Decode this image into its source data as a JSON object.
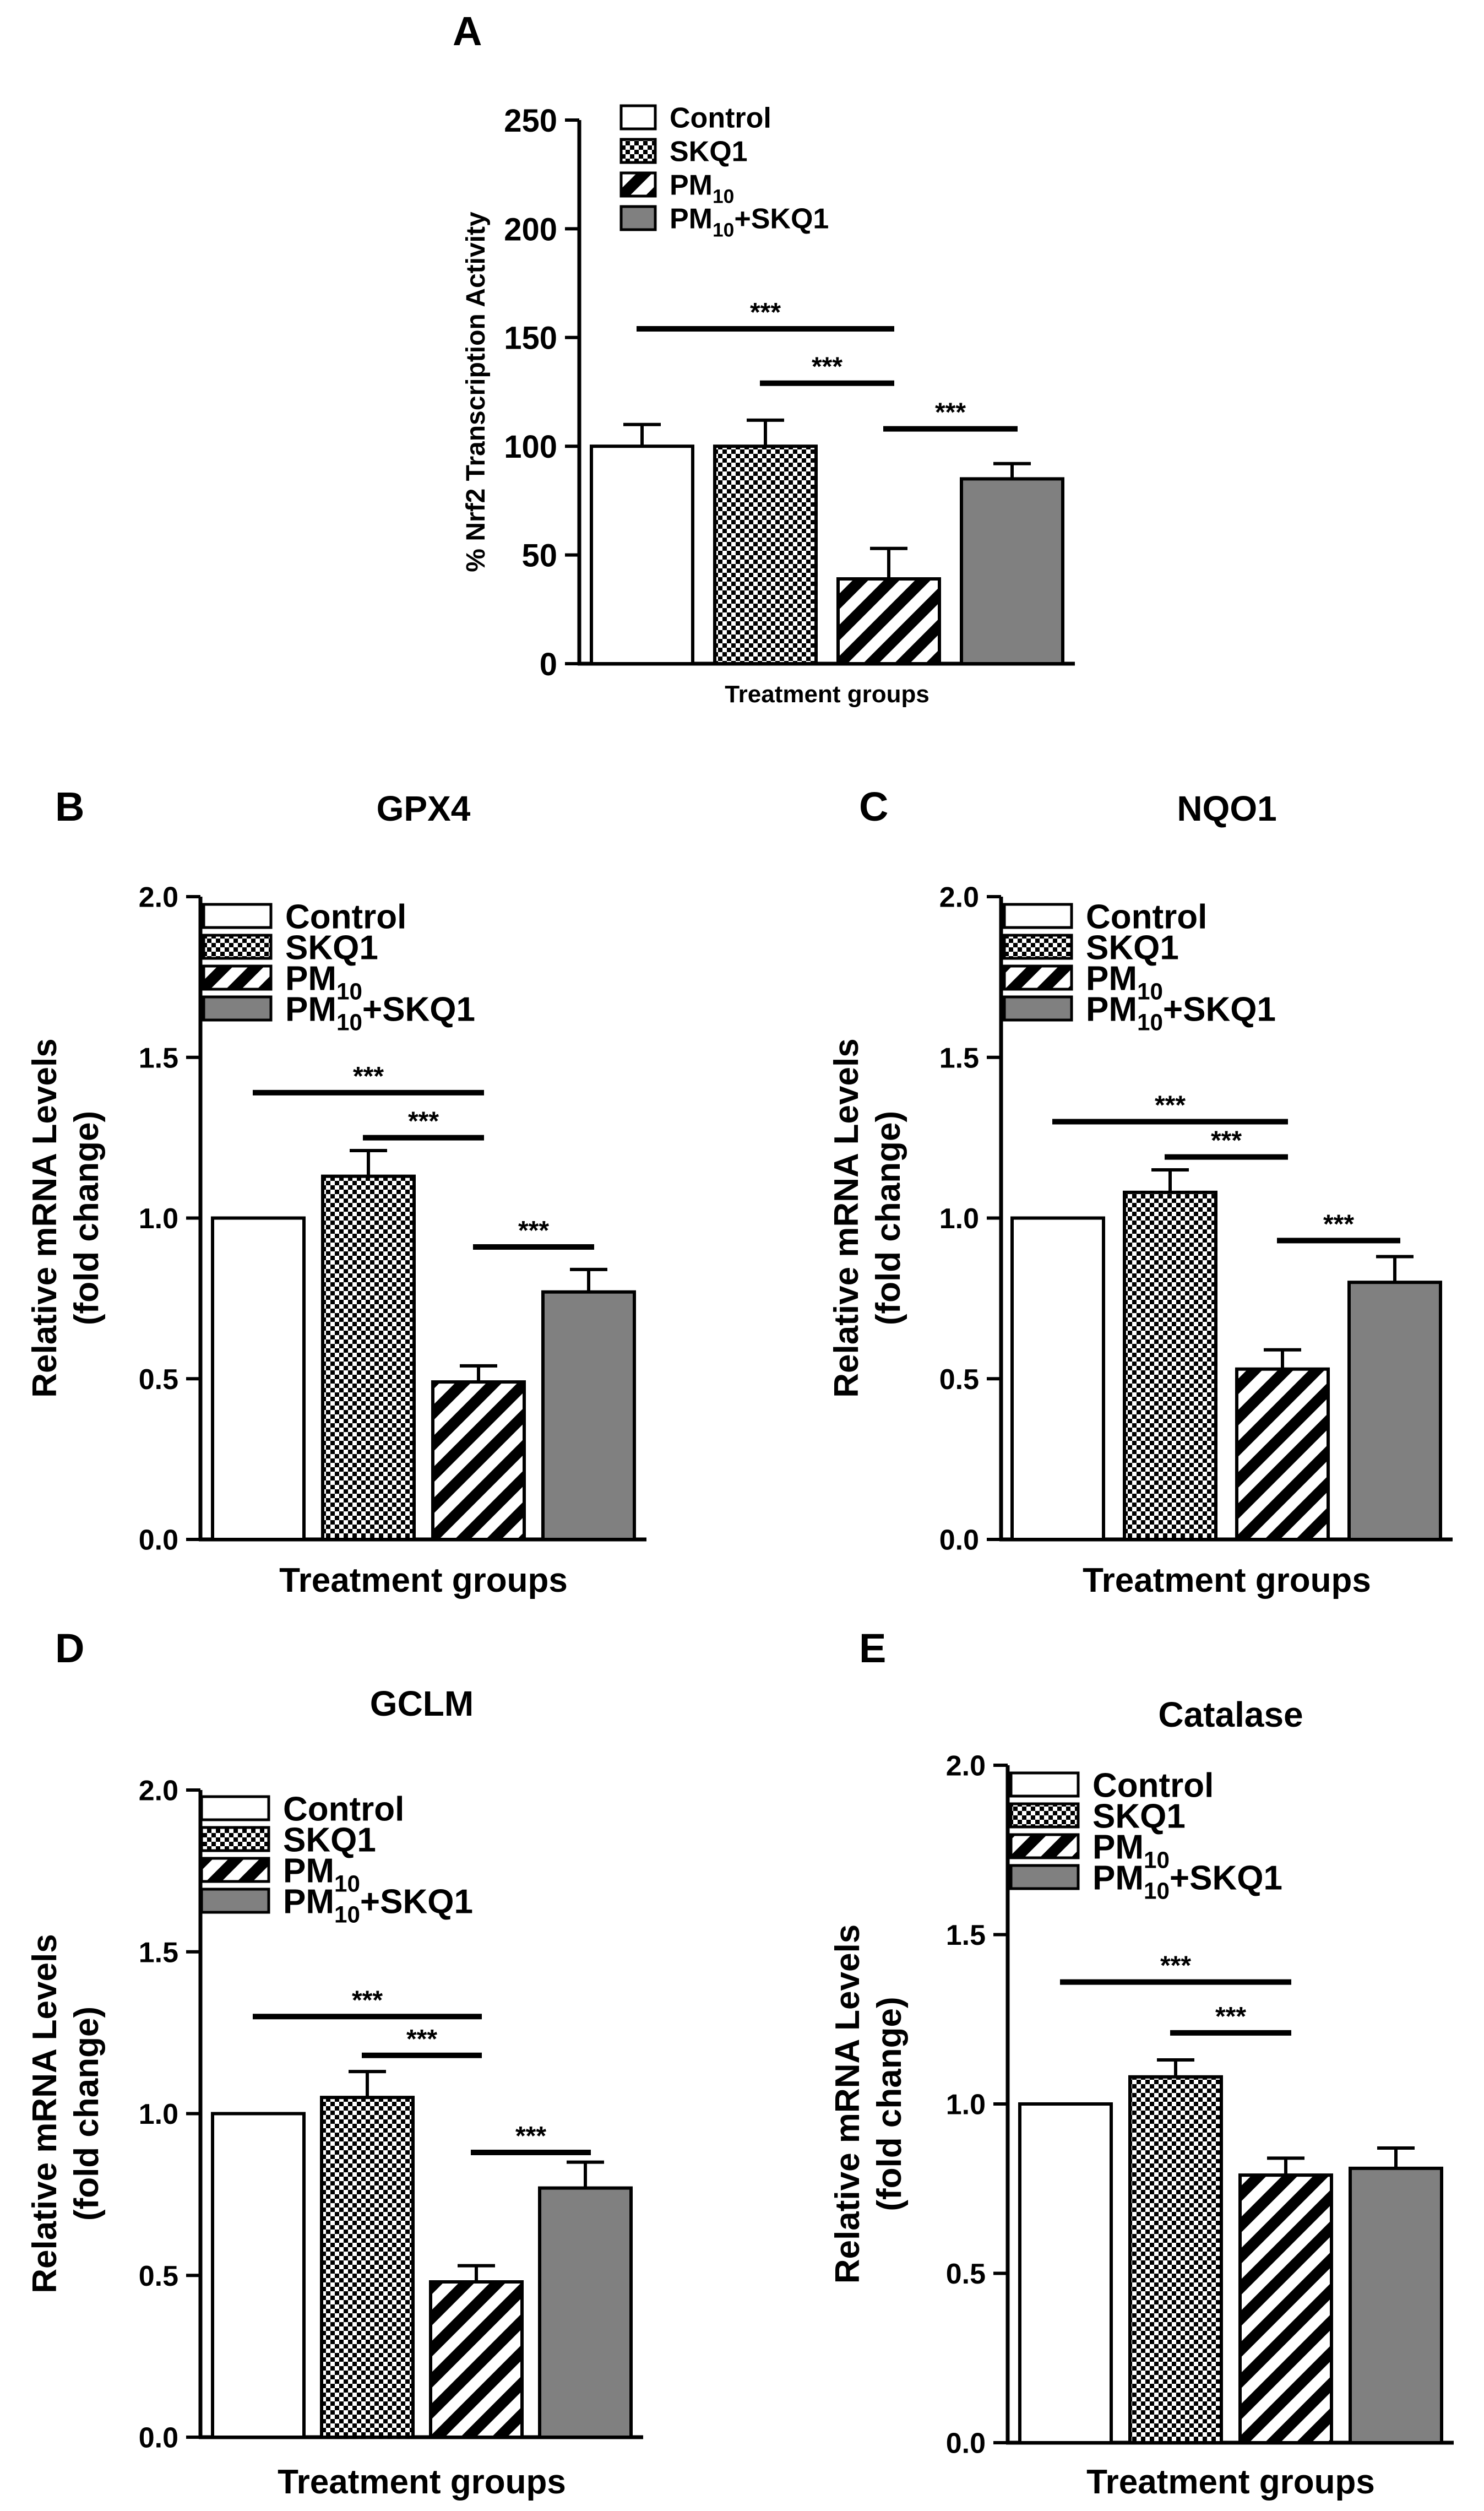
{
  "figure": {
    "groups": [
      "Control",
      "SKQ1",
      "PM10",
      "PM10+SKQ1"
    ],
    "legend": [
      {
        "name": "Control",
        "base": "Control",
        "sub": "",
        "tail": "",
        "pattern": "white"
      },
      {
        "name": "SKQ1",
        "base": "SKQ1",
        "sub": "",
        "tail": "",
        "pattern": "checker"
      },
      {
        "name": "PM10",
        "base": "PM",
        "sub": "10",
        "tail": "",
        "pattern": "hatch"
      },
      {
        "name": "PM10+SKQ1",
        "base": "PM",
        "sub": "10",
        "tail": "+SKQ1",
        "pattern": "gray"
      }
    ],
    "colors": {
      "bar_outline": "#000000",
      "gray_fill": "#808080",
      "background": "#ffffff"
    }
  },
  "chart_data": [
    {
      "panel": "A",
      "type": "bar",
      "title": "",
      "xlabel": "Treatment groups",
      "ylabel": "% Nrf2 Transcription Activity",
      "ylabel_line2": "",
      "categories": [
        "Control",
        "SKQ1",
        "PM10",
        "PM10+SKQ1"
      ],
      "values": [
        100,
        100,
        39,
        85
      ],
      "errors": [
        10,
        12,
        14,
        7
      ],
      "ylim": [
        0,
        250
      ],
      "yticks": [
        0,
        50,
        100,
        150,
        200,
        250
      ],
      "ytick_labels": [
        "0",
        "50",
        "100",
        "150",
        "200",
        "250"
      ],
      "significance": [
        {
          "from": 0,
          "to": 2,
          "label": "***",
          "y": 154
        },
        {
          "from": 1,
          "to": 2,
          "label": "***",
          "y": 129
        },
        {
          "from": 2,
          "to": 3,
          "label": "***",
          "y": 108
        }
      ]
    },
    {
      "panel": "B",
      "type": "bar",
      "title": "GPX4",
      "xlabel": "Treatment groups",
      "ylabel": "Relative mRNA Levels",
      "ylabel_line2": "(fold change)",
      "categories": [
        "Control",
        "SKQ1",
        "PM10",
        "PM10+SKQ1"
      ],
      "values": [
        1.0,
        1.13,
        0.49,
        0.77
      ],
      "errors": [
        0,
        0.08,
        0.05,
        0.07
      ],
      "ylim": [
        0,
        2.0
      ],
      "yticks": [
        0,
        0.5,
        1.0,
        1.5,
        2.0
      ],
      "ytick_labels": [
        "0.0",
        "0.5",
        "1.0",
        "1.5",
        "2.0"
      ],
      "significance": [
        {
          "from": 0,
          "to": 2,
          "label": "***",
          "y": 1.39
        },
        {
          "from": 1,
          "to": 2,
          "label": "***",
          "y": 1.25
        },
        {
          "from": 2,
          "to": 3,
          "label": "***",
          "y": 0.91
        }
      ]
    },
    {
      "panel": "C",
      "type": "bar",
      "title": "NQO1",
      "xlabel": "Treatment groups",
      "ylabel": "Relative mRNA Levels",
      "ylabel_line2": "(fold change)",
      "categories": [
        "Control",
        "SKQ1",
        "PM10",
        "PM10+SKQ1"
      ],
      "values": [
        1.0,
        1.08,
        0.53,
        0.8
      ],
      "errors": [
        0,
        0.07,
        0.06,
        0.08
      ],
      "ylim": [
        0,
        2.0
      ],
      "yticks": [
        0,
        0.5,
        1.0,
        1.5,
        2.0
      ],
      "ytick_labels": [
        "0.0",
        "0.5",
        "1.0",
        "1.5",
        "2.0"
      ],
      "significance": [
        {
          "from": 0,
          "to": 2,
          "label": "***",
          "y": 1.3
        },
        {
          "from": 1,
          "to": 2,
          "label": "***",
          "y": 1.19
        },
        {
          "from": 2,
          "to": 3,
          "label": "***",
          "y": 0.93
        }
      ]
    },
    {
      "panel": "D",
      "type": "bar",
      "title": "GCLM",
      "xlabel": "Treatment groups",
      "ylabel": "Relative mRNA Levels",
      "ylabel_line2": "(fold change)",
      "categories": [
        "Control",
        "SKQ1",
        "PM10",
        "PM10+SKQ1"
      ],
      "values": [
        1.0,
        1.05,
        0.48,
        0.77
      ],
      "errors": [
        0,
        0.08,
        0.05,
        0.08
      ],
      "ylim": [
        0,
        2.0
      ],
      "yticks": [
        0,
        0.5,
        1.0,
        1.5,
        2.0
      ],
      "ytick_labels": [
        "0.0",
        "0.5",
        "1.0",
        "1.5",
        "2.0"
      ],
      "significance": [
        {
          "from": 0,
          "to": 2,
          "label": "***",
          "y": 1.3
        },
        {
          "from": 1,
          "to": 2,
          "label": "***",
          "y": 1.18
        },
        {
          "from": 2,
          "to": 3,
          "label": "***",
          "y": 0.88
        }
      ]
    },
    {
      "panel": "E",
      "type": "bar",
      "title": "Catalase",
      "xlabel": "Treatment groups",
      "ylabel": "Relative mRNA Levels",
      "ylabel_line2": "(fold change)",
      "categories": [
        "Control",
        "SKQ1",
        "PM10",
        "PM10+SKQ1"
      ],
      "values": [
        1.0,
        1.08,
        0.79,
        0.81
      ],
      "errors": [
        0,
        0.05,
        0.05,
        0.06
      ],
      "ylim": [
        0,
        2.0
      ],
      "yticks": [
        0,
        0.5,
        1.0,
        1.5,
        2.0
      ],
      "ytick_labels": [
        "0.0",
        "0.5",
        "1.0",
        "1.5",
        "2.0"
      ],
      "significance": [
        {
          "from": 0,
          "to": 2,
          "label": "***",
          "y": 1.36
        },
        {
          "from": 1,
          "to": 2,
          "label": "***",
          "y": 1.21
        }
      ]
    }
  ]
}
